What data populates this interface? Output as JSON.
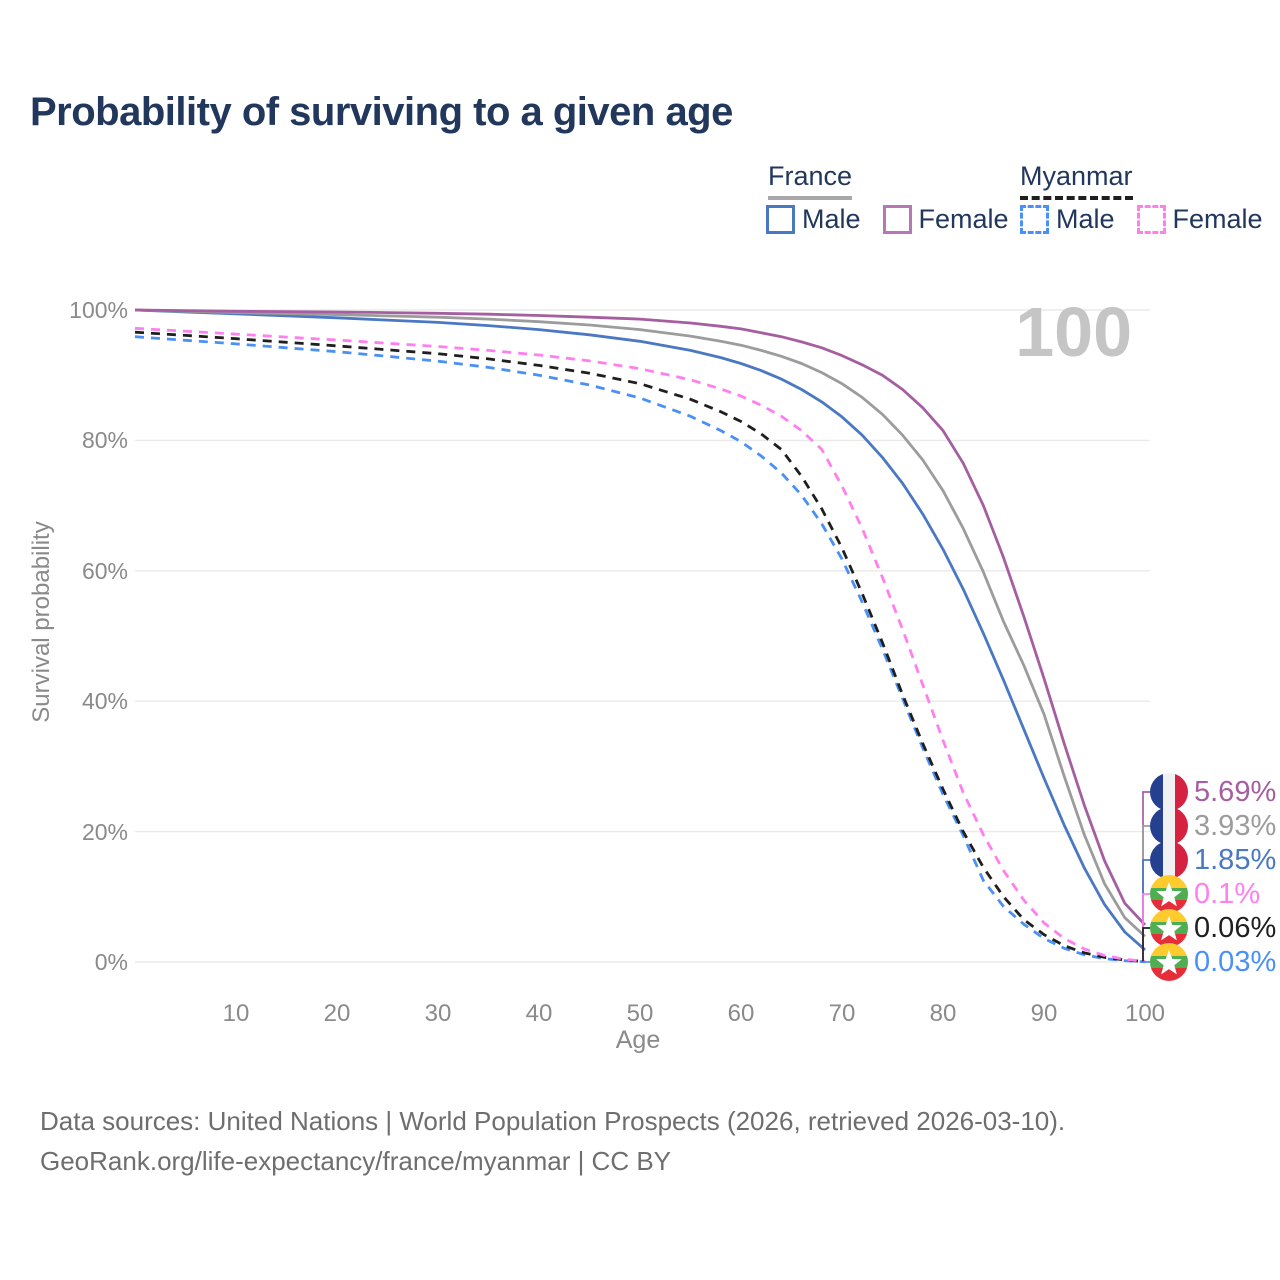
{
  "title": "Probability of surviving to a given age",
  "watermark": "100",
  "legend": {
    "groups": [
      {
        "name": "France",
        "line_style": "solid",
        "underline_color": "#a8a8a8",
        "items": [
          {
            "label": "Male",
            "color": "#4a78c3"
          },
          {
            "label": "Female",
            "color": "#b478b2"
          }
        ]
      },
      {
        "name": "Myanmar",
        "line_style": "dashed",
        "underline_color": "#1f1f1f",
        "items": [
          {
            "label": "Male",
            "color": "#4a90f5"
          },
          {
            "label": "Female",
            "color": "#ff7fee"
          }
        ]
      }
    ]
  },
  "chart_data": {
    "type": "line",
    "title": "Probability of surviving to a given age",
    "xlabel": "Age",
    "ylabel": "Survival probability",
    "xlim": [
      0,
      100
    ],
    "ylim": [
      0,
      100
    ],
    "grid": "horizontal",
    "legend_position": "top-right",
    "x_ticks": [
      {
        "v": 10,
        "label": "10"
      },
      {
        "v": 20,
        "label": "20"
      },
      {
        "v": 30,
        "label": "30"
      },
      {
        "v": 40,
        "label": "40"
      },
      {
        "v": 50,
        "label": "50"
      },
      {
        "v": 60,
        "label": "60"
      },
      {
        "v": 70,
        "label": "70"
      },
      {
        "v": 80,
        "label": "80"
      },
      {
        "v": 90,
        "label": "90"
      },
      {
        "v": 100,
        "label": "100"
      }
    ],
    "y_ticks": [
      {
        "v": 0,
        "label": "0%"
      },
      {
        "v": 20,
        "label": "20%"
      },
      {
        "v": 40,
        "label": "40%"
      },
      {
        "v": 60,
        "label": "60%"
      },
      {
        "v": 80,
        "label": "80%"
      },
      {
        "v": 100,
        "label": "100%"
      }
    ],
    "ages": [
      0,
      5,
      10,
      15,
      20,
      25,
      30,
      35,
      40,
      45,
      50,
      55,
      58,
      60,
      62,
      64,
      66,
      68,
      70,
      72,
      74,
      76,
      78,
      80,
      82,
      84,
      86,
      88,
      90,
      92,
      94,
      96,
      98,
      100
    ],
    "series": [
      {
        "id": "france-female",
        "name": "France Female",
        "country": "France",
        "flag": "france",
        "color": "#a55fa0",
        "dash": "solid",
        "end_label": "5.69%",
        "values": [
          100,
          99.9,
          99.8,
          99.75,
          99.7,
          99.6,
          99.5,
          99.35,
          99.15,
          98.9,
          98.6,
          98,
          97.5,
          97.1,
          96.5,
          95.9,
          95.1,
          94.2,
          93,
          91.6,
          90,
          87.8,
          85,
          81.5,
          76.5,
          70,
          62,
          53,
          43.5,
          33.5,
          24,
          15.5,
          9,
          5.69
        ]
      },
      {
        "id": "france-both",
        "name": "France Both sexes",
        "country": "France",
        "flag": "france",
        "color": "#9c9c9c",
        "dash": "solid",
        "end_label": "3.93%",
        "values": [
          100,
          99.8,
          99.6,
          99.45,
          99.3,
          99.1,
          98.9,
          98.6,
          98.2,
          97.7,
          97,
          96,
          95.2,
          94.6,
          93.8,
          92.9,
          91.8,
          90.4,
          88.7,
          86.6,
          84,
          80.8,
          77,
          72.3,
          66.5,
          59.8,
          52.2,
          45.5,
          38,
          28.5,
          19.5,
          12,
          6.8,
          3.93
        ]
      },
      {
        "id": "france-male",
        "name": "France Male",
        "country": "France",
        "flag": "france",
        "color": "#4a78c3",
        "dash": "solid",
        "end_label": "1.85%",
        "values": [
          100,
          99.7,
          99.4,
          99.1,
          98.8,
          98.45,
          98.1,
          97.6,
          97,
          96.2,
          95.2,
          93.8,
          92.7,
          91.8,
          90.7,
          89.4,
          87.8,
          85.9,
          83.6,
          80.8,
          77.4,
          73.4,
          68.7,
          63.3,
          57.2,
          50.4,
          43.2,
          35.7,
          28.2,
          21,
          14.4,
          8.8,
          4.6,
          1.85
        ]
      },
      {
        "id": "myanmar-female",
        "name": "Myanmar Female",
        "country": "Myanmar",
        "flag": "myanmar",
        "color": "#ff7fee",
        "dash": "dashed",
        "end_label": "0.1%",
        "values": [
          97.2,
          96.75,
          96.3,
          95.85,
          95.4,
          94.9,
          94.4,
          93.8,
          93.1,
          92.2,
          91,
          89.3,
          87.9,
          86.8,
          85.4,
          83.7,
          81.5,
          78.6,
          73,
          66.5,
          59,
          51,
          42.5,
          34,
          26,
          19.5,
          14,
          9.5,
          6,
          3.6,
          2,
          1,
          0.4,
          0.1
        ]
      },
      {
        "id": "myanmar-both",
        "name": "Myanmar Both sexes",
        "country": "Myanmar",
        "flag": "myanmar",
        "color": "#1f1f1f",
        "dash": "dashed",
        "end_label": "0.06%",
        "values": [
          96.6,
          96.1,
          95.6,
          95.05,
          94.5,
          93.9,
          93.3,
          92.5,
          91.5,
          90.3,
          88.7,
          86.3,
          84.4,
          82.9,
          81,
          78.6,
          74.5,
          69.5,
          63.5,
          56.5,
          49,
          41,
          33.5,
          26.5,
          20,
          14.5,
          10,
          6.5,
          4.2,
          2.5,
          1.4,
          0.7,
          0.3,
          0.06
        ]
      },
      {
        "id": "myanmar-male",
        "name": "Myanmar Male",
        "country": "Myanmar",
        "flag": "myanmar",
        "color": "#4a90f5",
        "dash": "dashed",
        "end_label": "0.03%",
        "values": [
          95.9,
          95.35,
          94.8,
          94.2,
          93.6,
          92.9,
          92.15,
          91.2,
          90,
          88.5,
          86.5,
          83.7,
          81.5,
          79.8,
          77.6,
          75,
          71.6,
          67.2,
          61.8,
          55.2,
          48,
          40.4,
          32.8,
          25.7,
          19.4,
          12.5,
          8.5,
          5.8,
          3.6,
          2.1,
          1.1,
          0.5,
          0.2,
          0.03
        ]
      }
    ]
  },
  "footer": {
    "line1": "Data sources: United Nations | World Population Prospects (2026, retrieved 2026-03-10).",
    "line2": "GeoRank.org/life-expectancy/france/myanmar | CC BY"
  },
  "colors": {
    "title_text": "#21375c",
    "axis_text": "#8a8a8a",
    "gridline": "#eaeaea",
    "watermark": "#c5c5c5",
    "footer_text": "#6e6e6e",
    "flag_france": [
      "#25408f",
      "#f1f1f3",
      "#d52241"
    ],
    "flag_myanmar": [
      "#fecb2f",
      "#4fae51",
      "#e62e39",
      "#ffffff"
    ]
  }
}
